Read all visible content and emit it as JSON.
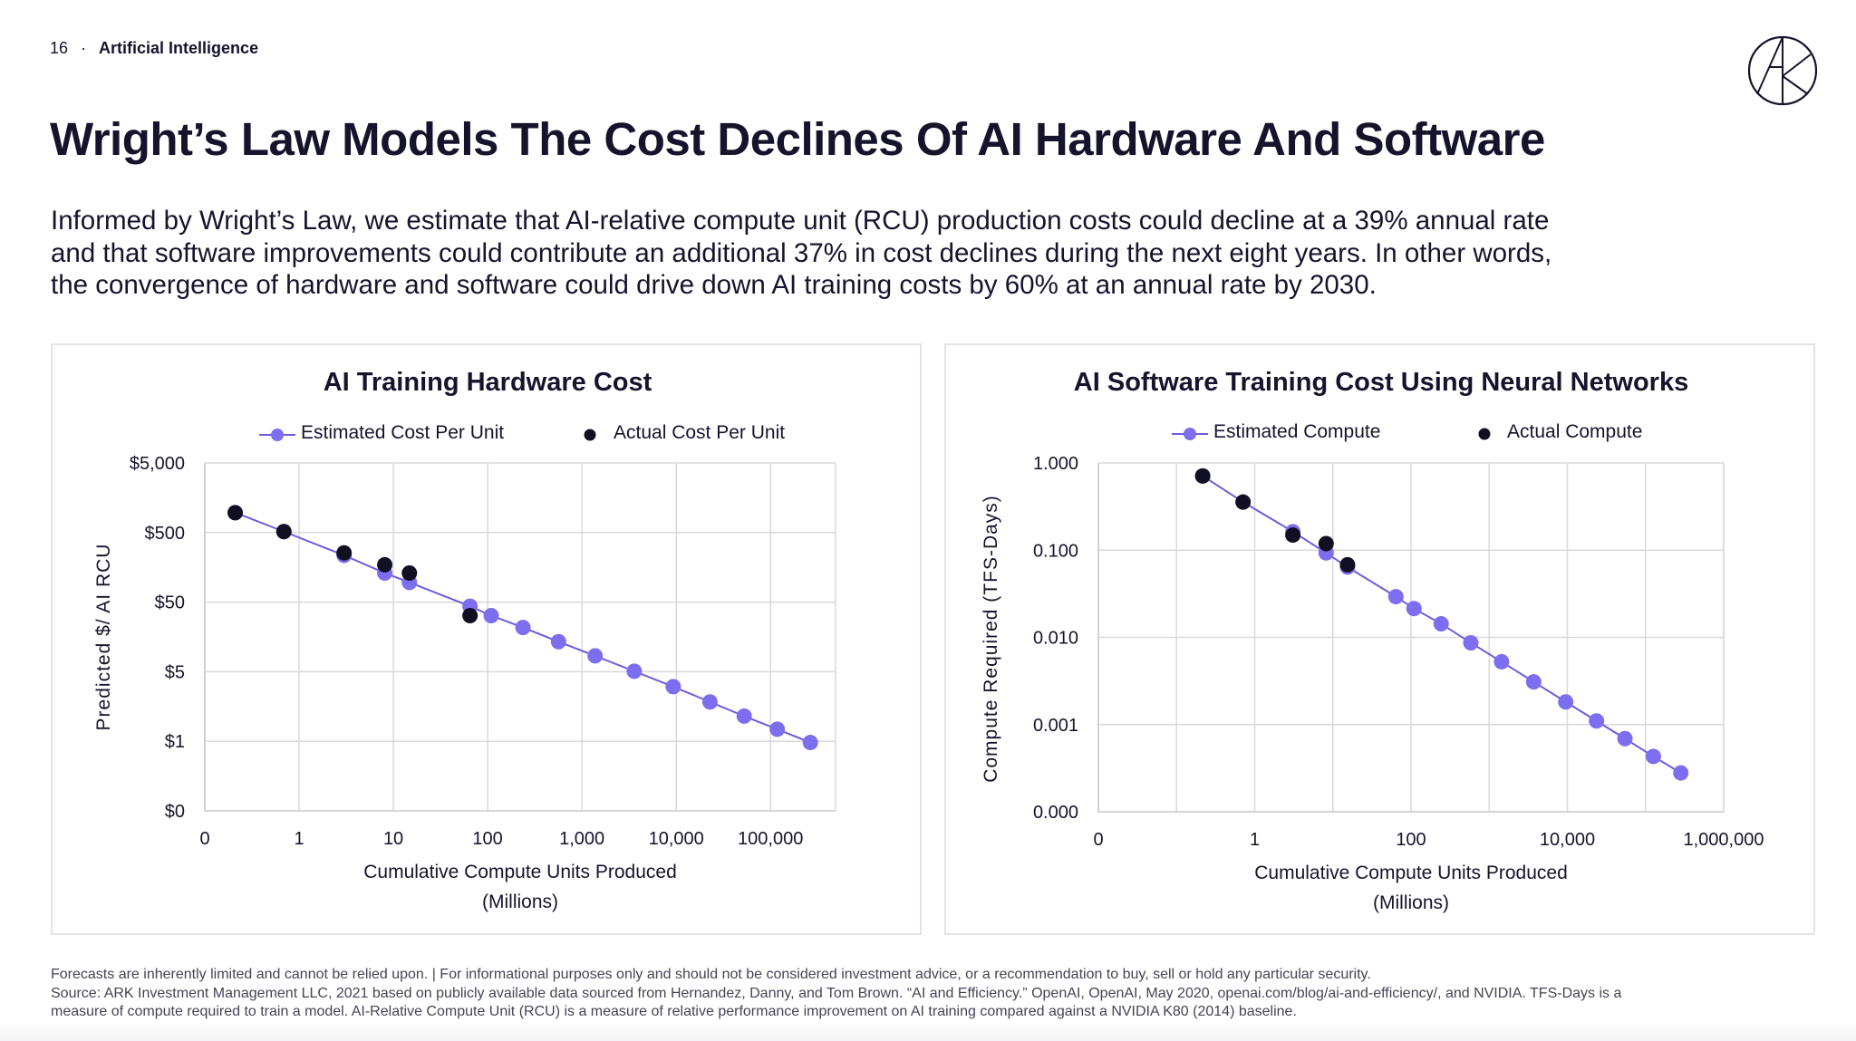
{
  "header": {
    "page_number": "16",
    "separator": "·",
    "section": "Artificial Intelligence"
  },
  "logo": {
    "name": "ark-logo-icon",
    "text": "ARK"
  },
  "title": "Wright’s Law Models The Cost Declines Of AI Hardware And Software",
  "body_lines": [
    "Informed by Wright’s Law, we estimate that AI-relative compute unit (RCU) production costs could decline at a 39% annual rate",
    "and that software improvements could contribute an additional 37% in cost declines during the next eight years. In other words,",
    "the convergence of hardware and software could drive down AI training costs by 60% at an annual rate by 2030."
  ],
  "colors": {
    "estimated": "#7d6ef0",
    "estimated_line": "#6b5ce0",
    "actual": "#111022",
    "grid": "#d9d9dc",
    "text": "#15142c"
  },
  "chart_data": [
    {
      "type": "scatter",
      "title": "AI Training Hardware Cost",
      "xlabel": "Cumulative Compute Units Produced",
      "xlabel2": "(Millions)",
      "ylabel": "Predicted $/ AI RCU",
      "xscale": "log",
      "yscale": "log",
      "xlim": [
        0.1,
        490000
      ],
      "ylim": [
        0.05,
        5000
      ],
      "grid": true,
      "legend": "top",
      "xticks": [
        0.1,
        1,
        10,
        100,
        1000,
        10000,
        100000
      ],
      "xtick_labels": [
        "0",
        "1",
        "10",
        "100",
        "1,000",
        "10,000",
        "100,000"
      ],
      "yticks": [
        5000,
        500,
        50,
        5,
        0.5,
        0.05
      ],
      "ytick_labels": [
        "$5,000",
        "$500",
        "$50",
        "$5",
        "$1",
        "$0"
      ],
      "series": [
        {
          "name": "Estimated Cost Per Unit",
          "style": "line-marker",
          "x": [
            0.21,
            0.69,
            3.0,
            8.1,
            14.8,
            65,
            109,
            237,
            565,
            1380,
            3590,
            9300,
            22800,
            52600,
            118000,
            265000
          ],
          "y": [
            966,
            516,
            235,
            131,
            96,
            43.7,
            32,
            21.6,
            13.5,
            8.45,
            5.08,
            3.05,
            1.84,
            1.15,
            0.745,
            0.48
          ]
        },
        {
          "name": "Actual Cost Per Unit",
          "style": "marker",
          "x": [
            0.21,
            0.69,
            3.0,
            8.1,
            14.8,
            65
          ],
          "y": [
            966,
            516,
            255,
            172,
            131,
            32
          ]
        }
      ]
    },
    {
      "type": "scatter",
      "title": "AI Software Training Cost Using Neural Networks",
      "xlabel": "Cumulative Compute Units Produced",
      "xlabel2": "(Millions)",
      "ylabel": "Compute Required (TFS-Days)",
      "xscale": "log",
      "yscale": "log",
      "xlim": [
        0.01,
        1000000
      ],
      "ylim": [
        0.0001,
        1
      ],
      "grid": true,
      "legend": "top",
      "xticks": [
        0.01,
        1,
        100,
        10000,
        1000000
      ],
      "xtick_labels": [
        "0",
        "1",
        "100",
        "10,000",
        "1,000,000"
      ],
      "yticks": [
        1,
        0.1,
        0.01,
        0.001,
        0.0001
      ],
      "ytick_labels": [
        "1.000",
        "0.100",
        "0.010",
        "0.001",
        "0.000"
      ],
      "series": [
        {
          "name": "Estimated Compute",
          "style": "line-marker",
          "x": [
            0.216,
            0.71,
            3.08,
            8.2,
            15.4,
            64,
            109,
            243,
            582,
            1440,
            3710,
            9530,
            23600,
            54600,
            126000,
            283000
          ],
          "y": [
            0.71,
            0.356,
            0.163,
            0.093,
            0.064,
            0.0293,
            0.0214,
            0.0143,
            0.00867,
            0.00525,
            0.00309,
            0.00182,
            0.0011,
            0.00069,
            0.000431,
            0.000279
          ]
        },
        {
          "name": "Actual Compute",
          "style": "marker",
          "x": [
            0.216,
            0.71,
            3.08,
            8.2,
            15.4
          ],
          "y": [
            0.71,
            0.356,
            0.149,
            0.119,
            0.068
          ]
        }
      ]
    }
  ],
  "footer_lines": [
    "Forecasts are inherently limited and cannot be relied upon. | For informational purposes only and should not be considered investment advice, or a recommendation to buy, sell or hold any particular security.",
    "Source: ARK Investment Management LLC, 2021 based on publicly available data sourced from Hernandez, Danny, and Tom Brown. “AI and Efficiency.” OpenAI, OpenAI, May 2020, openai.com/blog/ai-and-efficiency/, and NVIDIA. TFS-Days is a",
    "measure of compute required to train a model. AI-Relative Compute Unit (RCU) is a measure of relative performance improvement on AI training compared against a NVIDIA K80 (2014) baseline."
  ]
}
